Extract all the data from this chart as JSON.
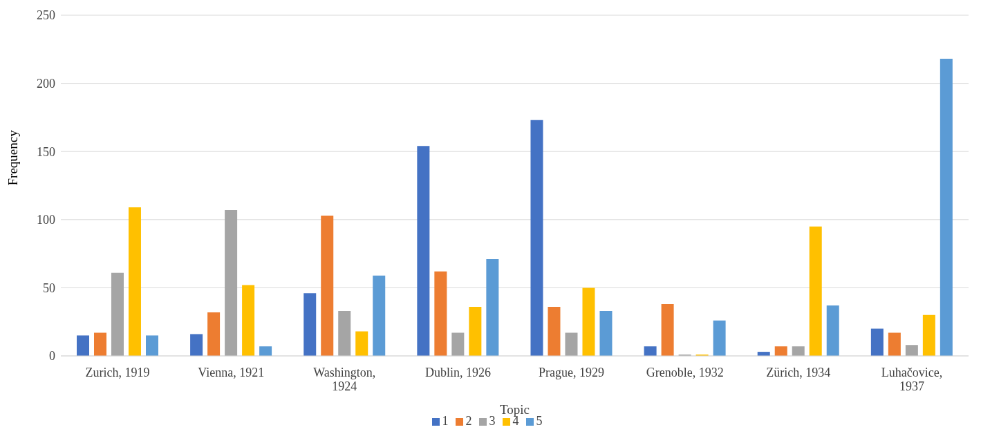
{
  "chart_data": {
    "type": "bar",
    "xlabel": "Topic",
    "ylabel": "Frequency",
    "categories": [
      "Zurich, 1919",
      "Vienna, 1921",
      "Washington, 1924",
      "Dublin, 1926",
      "Prague, 1929",
      "Grenoble, 1932",
      "Zürich, 1934",
      "Luhačovice, 1937"
    ],
    "series": [
      {
        "name": "1",
        "color": "#4472c4",
        "values": [
          15,
          16,
          46,
          154,
          173,
          7,
          3,
          20
        ]
      },
      {
        "name": "2",
        "color": "#ed7d31",
        "values": [
          17,
          32,
          103,
          62,
          36,
          38,
          7,
          17
        ]
      },
      {
        "name": "3",
        "color": "#a5a5a5",
        "values": [
          61,
          107,
          33,
          17,
          17,
          1,
          7,
          8
        ]
      },
      {
        "name": "4",
        "color": "#ffc000",
        "values": [
          109,
          52,
          18,
          36,
          50,
          1,
          95,
          30
        ]
      },
      {
        "name": "5",
        "color": "#5b9bd5",
        "values": [
          15,
          7,
          59,
          71,
          33,
          26,
          37,
          218
        ]
      }
    ],
    "ylim": [
      0,
      250
    ],
    "yticks": [
      0,
      50,
      100,
      150,
      200,
      250
    ],
    "grid": "y",
    "legend": "bottom"
  }
}
